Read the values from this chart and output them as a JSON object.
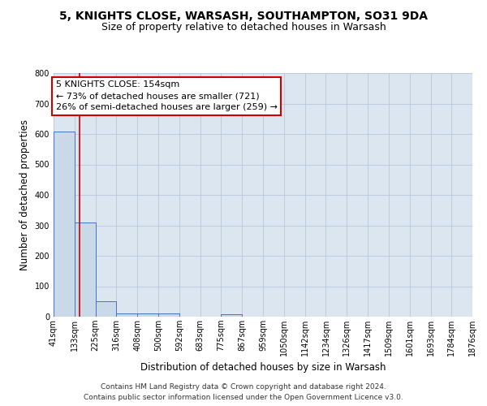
{
  "title1": "5, KNIGHTS CLOSE, WARSASH, SOUTHAMPTON, SO31 9DA",
  "title2": "Size of property relative to detached houses in Warsash",
  "xlabel": "Distribution of detached houses by size in Warsash",
  "ylabel": "Number of detached properties",
  "footnote1": "Contains HM Land Registry data © Crown copyright and database right 2024.",
  "footnote2": "Contains public sector information licensed under the Open Government Licence v3.0.",
  "annotation_line1": "5 KNIGHTS CLOSE: 154sqm",
  "annotation_line2": "← 73% of detached houses are smaller (721)",
  "annotation_line3": "26% of semi-detached houses are larger (259) →",
  "property_size": 154,
  "bar_edges": [
    41,
    133,
    225,
    316,
    408,
    500,
    592,
    683,
    775,
    867,
    959,
    1050,
    1142,
    1234,
    1326,
    1417,
    1509,
    1601,
    1693,
    1784,
    1876
  ],
  "bar_heights": [
    607,
    310,
    50,
    10,
    12,
    12,
    1,
    0,
    7,
    0,
    0,
    0,
    0,
    0,
    0,
    0,
    0,
    0,
    0,
    0
  ],
  "bar_color": "#c9d9e8",
  "bar_edge_color": "#4472c4",
  "vline_color": "#cc0000",
  "vline_x": 154,
  "annotation_box_color": "#cc0000",
  "annotation_text_color": "#000000",
  "background_color": "#ffffff",
  "axes_bg_color": "#dce6f0",
  "grid_color": "#b8c8d8",
  "ylim": [
    0,
    800
  ],
  "yticks": [
    0,
    100,
    200,
    300,
    400,
    500,
    600,
    700,
    800
  ],
  "title1_fontsize": 10,
  "title2_fontsize": 9,
  "axis_label_fontsize": 8.5,
  "tick_fontsize": 7,
  "footnote_fontsize": 6.5,
  "annotation_fontsize": 8
}
